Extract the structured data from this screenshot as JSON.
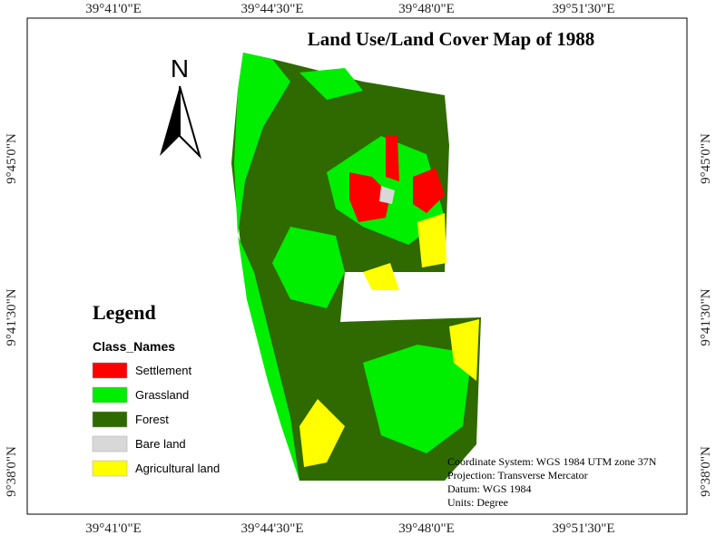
{
  "title": "Land Use/Land Cover Map of 1988",
  "north": "N",
  "longitudes": [
    "39°41'0\"E",
    "39°44'30\"E",
    "39°48'0\"E",
    "39°51'30\"E"
  ],
  "latitudes": [
    "9°45'0\"N",
    "9°41'30\"N",
    "9°38'0\"N"
  ],
  "legend": {
    "title": "Legend",
    "subtitle": "Class_Names",
    "classes": [
      {
        "name": "Settlement",
        "color": "#ff0000"
      },
      {
        "name": "Grassland",
        "color": "#00ee00"
      },
      {
        "name": "Forest",
        "color": "#2e6a00"
      },
      {
        "name": "Bare land",
        "color": "#d8d8d8"
      },
      {
        "name": "Agricultural land",
        "color": "#ffff00"
      }
    ]
  },
  "info": [
    "Coordinate System: WGS 1984 UTM zone 37N",
    "Projection: Transverse Mercator",
    "Datum: WGS 1984",
    "Units: Degree"
  ]
}
